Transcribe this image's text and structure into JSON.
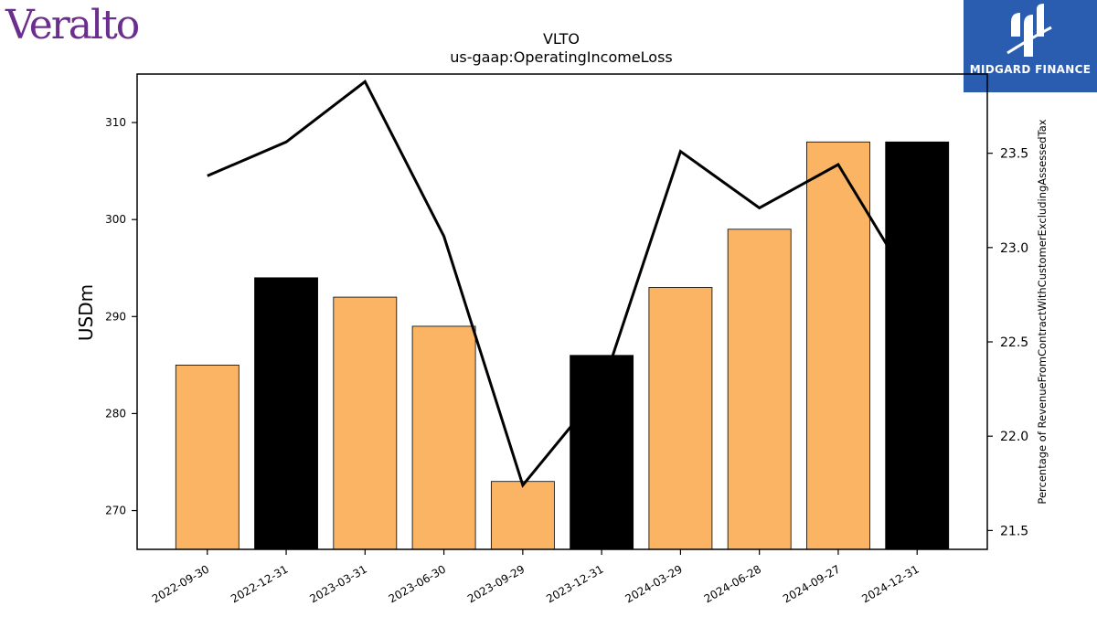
{
  "logos": {
    "left": {
      "text": "Veralto",
      "color": "#6b2d8e"
    },
    "right": {
      "text": "MIDGARD FINANCE",
      "color": "#2a5db0"
    }
  },
  "chart_data": {
    "type": "bar",
    "title": "VLTO",
    "subtitle": "us-gaap:OperatingIncomeLoss",
    "ylabel": "USDm",
    "y2label": "Percentage of RevenueFromContractWithCustomerExcludingAssessedTax",
    "categories": [
      "2022-09-30",
      "2022-12-31",
      "2023-03-31",
      "2023-06-30",
      "2023-09-29",
      "2023-12-31",
      "2024-03-29",
      "2024-06-28",
      "2024-09-27",
      "2024-12-31"
    ],
    "ylim": [
      266,
      315
    ],
    "y2lim": [
      21.4,
      23.92
    ],
    "yticks": [
      270,
      280,
      290,
      300,
      310
    ],
    "y2ticks": [
      "21.5",
      "22.0",
      "22.5",
      "23.0",
      "23.5"
    ],
    "series": [
      {
        "kind": "bar",
        "values": [
          285,
          294,
          292,
          289,
          273,
          286,
          293,
          299,
          308,
          308
        ],
        "colors": [
          "#fbb464",
          "#000000",
          "#fbb464",
          "#fbb464",
          "#fbb464",
          "#000000",
          "#fbb464",
          "#fbb464",
          "#fbb464",
          "#000000"
        ]
      },
      {
        "kind": "line",
        "axis": "right",
        "values": [
          23.38,
          23.56,
          23.88,
          23.06,
          21.74,
          22.25,
          23.51,
          23.21,
          23.44,
          22.75
        ],
        "color": "#000000"
      }
    ],
    "grid": false,
    "legend": "none"
  }
}
